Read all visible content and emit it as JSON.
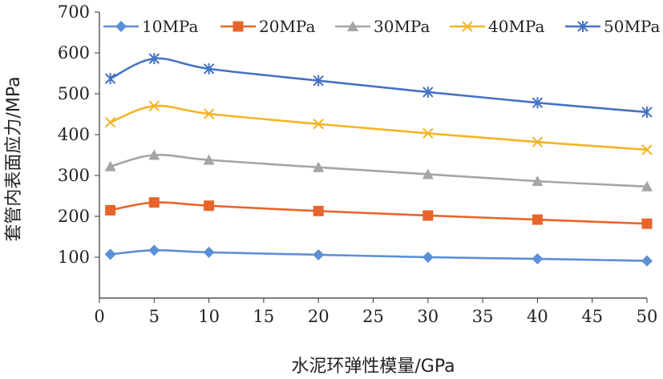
{
  "chart_data": {
    "type": "line",
    "title": "",
    "xlabel": "水泥环弹性模量/GPa",
    "ylabel": "套管内表面应力/MPa",
    "xlim": [
      0,
      50
    ],
    "ylim": [
      0,
      700
    ],
    "xticks": [
      0,
      5,
      10,
      15,
      20,
      25,
      30,
      35,
      40,
      45,
      50
    ],
    "yticks": [
      100,
      200,
      300,
      400,
      500,
      600,
      700
    ],
    "x": [
      1,
      5,
      10,
      20,
      30,
      40,
      50
    ],
    "grid": false,
    "legend_position": "top",
    "series": [
      {
        "name": "10MPa",
        "color": "#5b8fd6",
        "marker": "diamond",
        "values": [
          107,
          117,
          112,
          106,
          100,
          96,
          91
        ]
      },
      {
        "name": "20MPa",
        "color": "#e8642a",
        "marker": "square",
        "values": [
          215,
          234,
          226,
          213,
          202,
          192,
          182
        ]
      },
      {
        "name": "30MPa",
        "color": "#a5a5a5",
        "marker": "triangle",
        "values": [
          322,
          350,
          338,
          320,
          303,
          286,
          273
        ]
      },
      {
        "name": "40MPa",
        "color": "#f5b324",
        "marker": "x",
        "values": [
          430,
          470,
          451,
          426,
          403,
          382,
          363
        ]
      },
      {
        "name": "50MPa",
        "color": "#4472c4",
        "marker": "star",
        "values": [
          537,
          586,
          561,
          532,
          504,
          478,
          455
        ]
      }
    ]
  }
}
